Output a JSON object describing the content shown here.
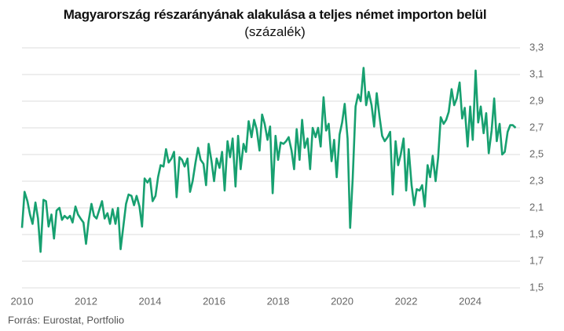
{
  "chart_data": {
    "type": "line",
    "title": "Magyarország részarányának alakulása a teljes német importon belül",
    "subtitle": "(százalék)",
    "source": "Forrás: Eurostat, Portfolio",
    "x": [
      2010.0,
      2010.08,
      2010.17,
      2010.25,
      2010.33,
      2010.42,
      2010.5,
      2010.58,
      2010.67,
      2010.75,
      2010.83,
      2010.92,
      2011.0,
      2011.08,
      2011.17,
      2011.25,
      2011.33,
      2011.42,
      2011.5,
      2011.58,
      2011.67,
      2011.75,
      2011.83,
      2011.92,
      2012.0,
      2012.08,
      2012.17,
      2012.25,
      2012.33,
      2012.42,
      2012.5,
      2012.58,
      2012.67,
      2012.75,
      2012.83,
      2012.92,
      2013.0,
      2013.08,
      2013.17,
      2013.25,
      2013.33,
      2013.42,
      2013.5,
      2013.58,
      2013.67,
      2013.75,
      2013.83,
      2013.92,
      2014.0,
      2014.08,
      2014.17,
      2014.25,
      2014.33,
      2014.42,
      2014.5,
      2014.58,
      2014.67,
      2014.75,
      2014.83,
      2014.92,
      2015.0,
      2015.08,
      2015.17,
      2015.25,
      2015.33,
      2015.42,
      2015.5,
      2015.58,
      2015.67,
      2015.75,
      2015.83,
      2015.92,
      2016.0,
      2016.08,
      2016.17,
      2016.25,
      2016.33,
      2016.42,
      2016.5,
      2016.58,
      2016.67,
      2016.75,
      2016.83,
      2016.92,
      2017.0,
      2017.08,
      2017.17,
      2017.25,
      2017.33,
      2017.42,
      2017.5,
      2017.58,
      2017.67,
      2017.75,
      2017.83,
      2017.92,
      2018.0,
      2018.08,
      2018.17,
      2018.25,
      2018.33,
      2018.42,
      2018.5,
      2018.58,
      2018.67,
      2018.75,
      2018.83,
      2018.92,
      2019.0,
      2019.08,
      2019.17,
      2019.25,
      2019.33,
      2019.42,
      2019.5,
      2019.58,
      2019.67,
      2019.75,
      2019.83,
      2019.92,
      2020.0,
      2020.08,
      2020.17,
      2020.25,
      2020.33,
      2020.42,
      2020.5,
      2020.58,
      2020.67,
      2020.75,
      2020.83,
      2020.92,
      2021.0,
      2021.08,
      2021.17,
      2021.25,
      2021.33,
      2021.42,
      2021.5,
      2021.58,
      2021.67,
      2021.75,
      2021.83,
      2021.92,
      2022.0,
      2022.08,
      2022.17,
      2022.25,
      2022.33,
      2022.42,
      2022.5,
      2022.58,
      2022.67,
      2022.75,
      2022.83,
      2022.92,
      2023.0,
      2023.08,
      2023.17,
      2023.25,
      2023.33,
      2023.42,
      2023.5,
      2023.58,
      2023.67,
      2023.75,
      2023.83,
      2023.92,
      2024.0,
      2024.08,
      2024.17,
      2024.25,
      2024.33,
      2024.42,
      2024.5,
      2024.58,
      2024.67,
      2024.75,
      2024.83,
      2024.92,
      2025.0,
      2025.08,
      2025.17,
      2025.25,
      2025.33,
      2025.42
    ],
    "series": [
      {
        "color": "#17a070",
        "values": [
          1.95,
          2.22,
          2.15,
          2.05,
          1.98,
          2.14,
          2.02,
          1.77,
          2.16,
          2.15,
          1.96,
          2.05,
          1.87,
          2.08,
          2.1,
          2.01,
          2.04,
          2.02,
          2.04,
          1.99,
          2.11,
          2.05,
          2.02,
          1.99,
          1.83,
          2.0,
          2.13,
          2.04,
          2.02,
          2.09,
          2.15,
          2.02,
          2.06,
          1.98,
          2.09,
          1.98,
          2.1,
          1.79,
          1.97,
          2.13,
          2.2,
          2.19,
          2.12,
          2.19,
          2.11,
          1.96,
          2.32,
          2.29,
          2.32,
          2.15,
          2.19,
          2.33,
          2.42,
          2.41,
          2.54,
          2.44,
          2.47,
          2.52,
          2.18,
          2.48,
          2.46,
          2.41,
          2.47,
          2.22,
          2.3,
          2.44,
          2.55,
          2.46,
          2.43,
          2.27,
          2.58,
          2.45,
          2.3,
          2.47,
          2.4,
          2.52,
          2.23,
          2.6,
          2.48,
          2.62,
          2.26,
          2.64,
          2.39,
          2.58,
          2.52,
          2.75,
          2.63,
          2.76,
          2.69,
          2.53,
          2.8,
          2.73,
          2.61,
          2.71,
          2.21,
          2.64,
          2.46,
          2.59,
          2.58,
          2.6,
          2.63,
          2.53,
          2.39,
          2.69,
          2.46,
          2.76,
          2.55,
          2.62,
          2.39,
          2.7,
          2.63,
          2.7,
          2.56,
          2.93,
          2.68,
          2.73,
          2.45,
          2.61,
          2.33,
          2.65,
          2.74,
          2.88,
          2.62,
          1.95,
          2.32,
          2.86,
          2.95,
          2.9,
          3.15,
          2.87,
          2.97,
          2.87,
          2.71,
          2.96,
          2.78,
          2.64,
          2.6,
          2.63,
          2.67,
          2.2,
          2.6,
          2.42,
          2.5,
          2.62,
          2.23,
          2.54,
          2.27,
          2.12,
          2.24,
          2.23,
          2.27,
          2.11,
          2.42,
          2.33,
          2.49,
          2.3,
          2.48,
          2.78,
          2.73,
          2.76,
          2.82,
          2.99,
          2.87,
          2.92,
          3.04,
          2.77,
          2.85,
          2.56,
          2.86,
          2.61,
          3.13,
          2.74,
          2.86,
          2.66,
          2.81,
          2.51,
          2.68,
          2.92,
          2.6,
          2.73,
          2.5,
          2.52,
          2.67,
          2.72,
          2.72,
          2.7
        ]
      }
    ],
    "xlim": [
      2010,
      2025.9
    ],
    "xticks": [
      2010,
      2012,
      2014,
      2016,
      2018,
      2020,
      2022,
      2024
    ],
    "ylim": [
      1.5,
      3.3
    ],
    "yticks": [
      {
        "value": 1.5,
        "label": "1,5"
      },
      {
        "value": 1.7,
        "label": "1,7"
      },
      {
        "value": 1.9,
        "label": "1,9"
      },
      {
        "value": 2.1,
        "label": "2,1"
      },
      {
        "value": 2.3,
        "label": "2,3"
      },
      {
        "value": 2.5,
        "label": "2,5"
      },
      {
        "value": 2.7,
        "label": "2,7"
      },
      {
        "value": 2.9,
        "label": "2,9"
      },
      {
        "value": 3.1,
        "label": "3,1"
      },
      {
        "value": 3.3,
        "label": "3,3"
      }
    ],
    "grid": true
  }
}
